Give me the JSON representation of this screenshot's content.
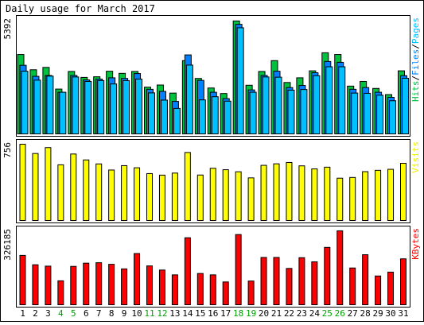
{
  "chart_data": {
    "type": "bar",
    "title": "Daily usage for March 2017",
    "categories": [
      "1",
      "2",
      "3",
      "4",
      "5",
      "6",
      "7",
      "8",
      "9",
      "10",
      "11",
      "12",
      "13",
      "14",
      "15",
      "16",
      "17",
      "18",
      "19",
      "20",
      "21",
      "22",
      "23",
      "24",
      "25",
      "26",
      "27",
      "28",
      "29",
      "30",
      "31"
    ],
    "weekend_days": [
      "4",
      "5",
      "11",
      "12",
      "18",
      "19",
      "25",
      "26"
    ],
    "panels": [
      {
        "id": "hits",
        "max_label": "5392",
        "ylim": [
          0,
          5392
        ],
        "legend": [
          {
            "text": "Pages",
            "color": "#00c0ff"
          },
          {
            "text": "Files",
            "color": "#0080ff"
          },
          {
            "text": "Hits",
            "color": "#00c040"
          }
        ],
        "series": [
          {
            "name": "Hits",
            "color": "#00c040",
            "values": [
              3780,
              3060,
              3170,
              2150,
              2980,
              2700,
              2730,
              2990,
              2890,
              2980,
              2240,
              2340,
              1960,
              3490,
              2650,
              2200,
              1940,
              5360,
              2330,
              2980,
              3490,
              2460,
              2680,
              3010,
              3860,
              3780,
              2290,
              2510,
              2180,
              1890,
              3010
            ]
          },
          {
            "name": "Files",
            "color": "#0080ff",
            "values": [
              3270,
              2750,
              2790,
              2000,
              2790,
              2580,
              2620,
              2680,
              2650,
              2880,
              2140,
              2040,
              1570,
              3760,
              2560,
              2000,
              1700,
              5200,
              2110,
              2790,
              2990,
              2220,
              2320,
              2920,
              3450,
              3410,
              2140,
              2220,
              2000,
              1760,
              2780
            ]
          },
          {
            "name": "Pages",
            "color": "#00c0ff",
            "values": [
              2990,
              2570,
              2760,
              2000,
              2720,
              2510,
              2550,
              2390,
              2550,
              2620,
              1970,
              1630,
              1240,
              3280,
              1640,
              1790,
              1580,
              5040,
              2000,
              2720,
              2710,
              2100,
              2130,
              2780,
              3200,
              3200,
              1960,
              1950,
              1860,
              1600,
              2660
            ]
          }
        ]
      },
      {
        "id": "visits",
        "max_label": "756",
        "ylim": [
          0,
          756
        ],
        "legend": [
          {
            "text": "Visits",
            "color": "#f0f000"
          }
        ],
        "series": [
          {
            "name": "Visits",
            "color": "#ffff00",
            "values": [
              756,
              665,
              723,
              554,
              660,
              602,
              563,
              503,
              546,
              525,
              468,
              453,
              473,
              675,
              454,
              520,
              506,
              486,
              426,
              549,
              564,
              577,
              544,
              514,
              531,
              423,
              430,
              487,
              500,
              510,
              569
            ]
          }
        ]
      },
      {
        "id": "kbytes",
        "max_label": "326185",
        "ylim": [
          0,
          326185
        ],
        "legend": [
          {
            "text": "KBytes",
            "color": "#ff0000"
          }
        ],
        "series": [
          {
            "name": "KBytes",
            "color": "#ff0000",
            "values": [
              219000,
              178000,
              172000,
              108000,
              171000,
              185000,
              187000,
              180000,
              160000,
              227000,
              173000,
              155000,
              134000,
              296000,
              140000,
              134000,
              103000,
              310000,
              107000,
              210000,
              210000,
              162000,
              209000,
              191000,
              254000,
              326185,
              164000,
              222000,
              129000,
              146000,
              204000
            ]
          }
        ]
      }
    ]
  }
}
